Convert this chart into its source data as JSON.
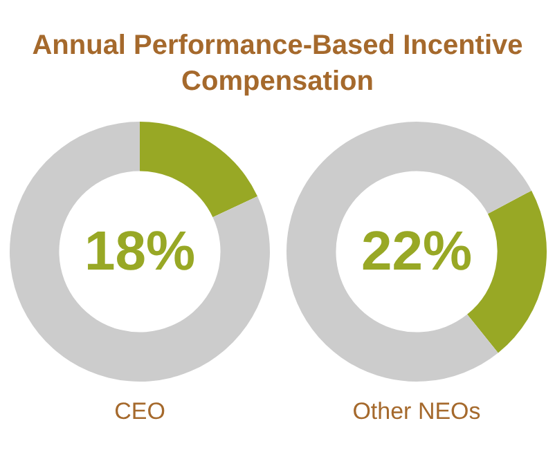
{
  "chart_data": [
    {
      "type": "donut",
      "title": "Annual Performance-Based Incentive Compensation",
      "xlabel": "CEO",
      "categories": [
        null,
        null
      ],
      "values": [
        18,
        82
      ],
      "colors": [
        "#98a825",
        "#cccccc"
      ],
      "annotations": [
        "18%"
      ]
    },
    {
      "type": "donut",
      "xlabel": "Other NEOs",
      "categories": [
        null,
        null
      ],
      "values": [
        22,
        78
      ],
      "colors": [
        "#98a825",
        "#cccccc"
      ],
      "annotations": [
        "22%"
      ]
    }
  ]
}
